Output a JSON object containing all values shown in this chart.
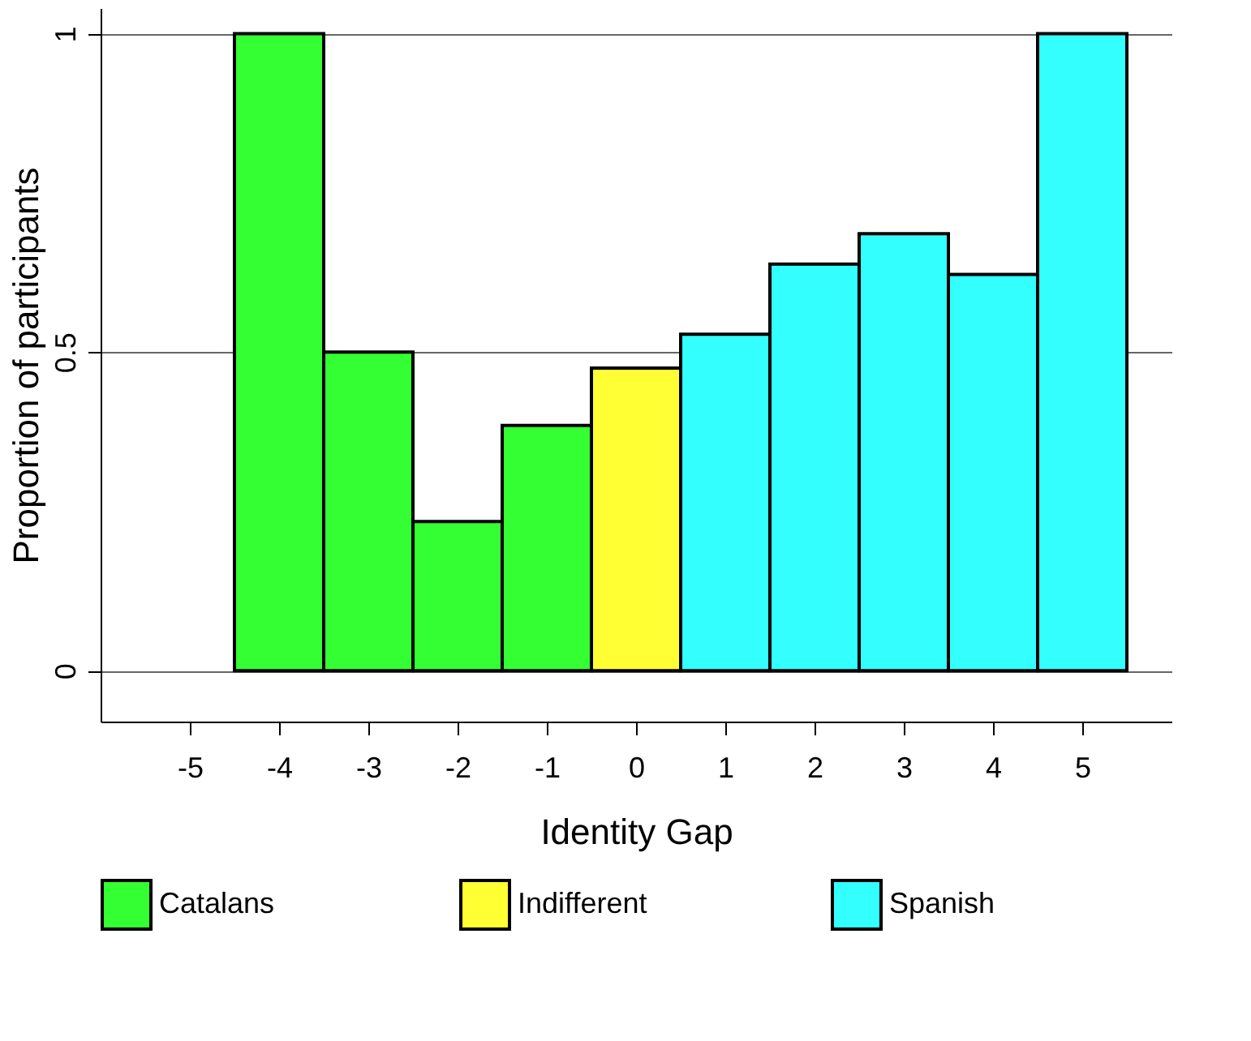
{
  "chart_data": {
    "type": "bar",
    "xlabel": "Identity Gap",
    "ylabel": "Proportion of participants",
    "xlim": [
      -6,
      6
    ],
    "xticks": [
      -5,
      -4,
      -3,
      -2,
      -1,
      0,
      1,
      2,
      3,
      4,
      5
    ],
    "ylim": [
      -0.08,
      1.04
    ],
    "yticks": [
      0,
      0.5,
      1
    ],
    "grid": "y",
    "legend": "bottom",
    "series": [
      {
        "name": "Catalans",
        "color": "#33ff33",
        "x": [
          -4,
          -3,
          -2,
          -1
        ],
        "values": [
          1.0,
          0.5,
          0.234,
          0.385
        ]
      },
      {
        "name": "Indifferent",
        "color": "#ffff33",
        "x": [
          0
        ],
        "values": [
          0.475
        ]
      },
      {
        "name": "Spanish",
        "color": "#33ffff",
        "x": [
          1,
          2,
          3,
          4,
          5
        ],
        "values": [
          0.528,
          0.638,
          0.686,
          0.622,
          1.0
        ]
      }
    ]
  }
}
